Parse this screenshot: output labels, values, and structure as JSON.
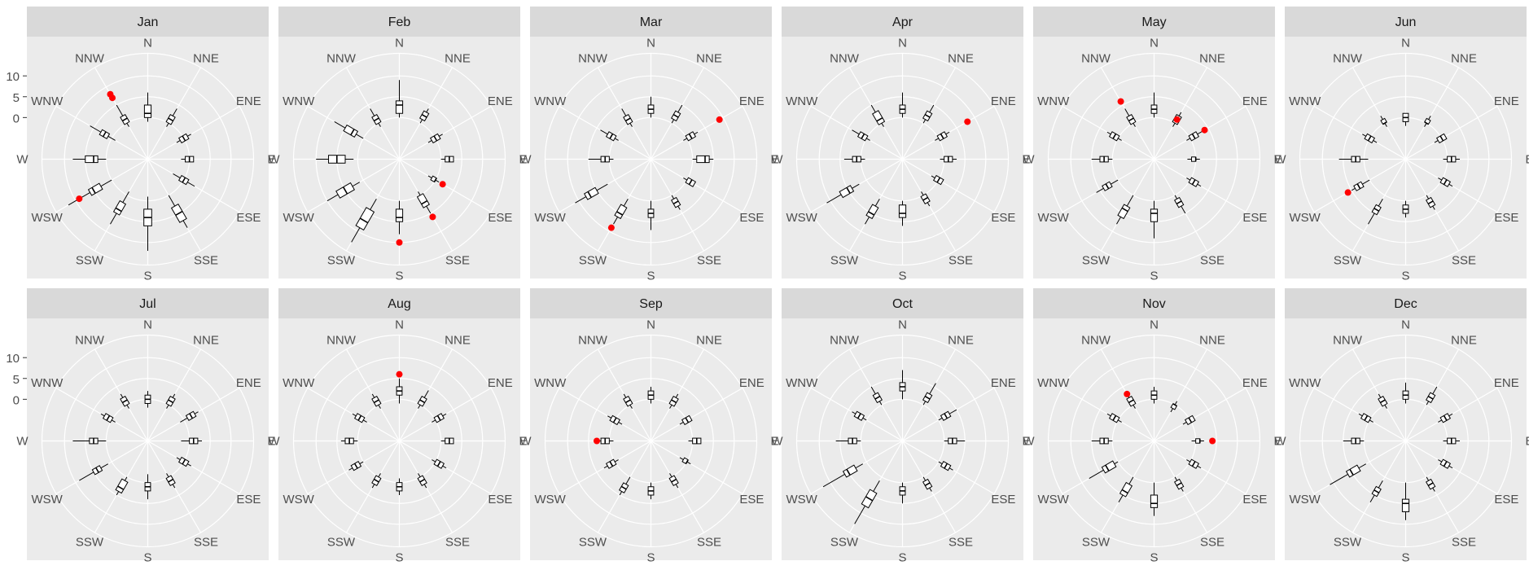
{
  "chart_data": {
    "type": "polar-boxplot-facets",
    "facet_labels": [
      "Jan",
      "Feb",
      "Mar",
      "Apr",
      "May",
      "Jun",
      "Jul",
      "Aug",
      "Sep",
      "Oct",
      "Nov",
      "Dec"
    ],
    "direction_labels": [
      "N",
      "NNE",
      "ENE",
      "E",
      "ESE",
      "SSE",
      "S",
      "SSW",
      "WSW",
      "W",
      "WNW",
      "NNW"
    ],
    "radial_ticks": [
      0,
      5,
      10
    ],
    "radial_tick_labels": [
      "0",
      "5",
      "10"
    ],
    "radial_range": [
      -10,
      16
    ],
    "grid": true,
    "outlier_color": "#ff0000",
    "panel_background": "#ebebeb",
    "strip_background": "#d9d9d9",
    "box_color": "#000000",
    "series": [
      {
        "name": "Jan",
        "boxes": [
          [
            -1,
            0,
            1,
            3,
            6
          ],
          [
            -1,
            0,
            1,
            2,
            4
          ],
          [
            -2,
            -1,
            0,
            1,
            2
          ],
          [
            -2,
            -1,
            0,
            1,
            1
          ],
          [
            -3,
            -1,
            0,
            1,
            3
          ],
          [
            0,
            3,
            5,
            7,
            9
          ],
          [
            -1,
            2,
            4,
            6,
            12
          ],
          [
            -1,
            2,
            4,
            5,
            8
          ],
          [
            0,
            3,
            5,
            6,
            12
          ],
          [
            0,
            2,
            3,
            5,
            8
          ],
          [
            -1,
            1,
            2,
            3,
            6
          ],
          [
            -1,
            0,
            1,
            2,
            5
          ]
        ],
        "outliers": [
          {
            "dir": "NNW",
            "value": 7
          },
          {
            "dir": "NNW",
            "value": 8
          },
          {
            "dir": "WSW",
            "value": 9
          }
        ]
      },
      {
        "name": "Feb",
        "boxes": [
          [
            0,
            1,
            3,
            4,
            9
          ],
          [
            0,
            1,
            2,
            3,
            4
          ],
          [
            -2,
            -1,
            0,
            1,
            2
          ],
          [
            0,
            1,
            2,
            3,
            3
          ],
          [
            -2,
            -1,
            0,
            0,
            1
          ],
          [
            -1,
            0,
            2,
            3,
            5
          ],
          [
            0,
            2,
            4,
            5,
            8
          ],
          [
            1,
            4,
            7,
            9,
            13
          ],
          [
            1,
            3,
            5,
            7,
            10
          ],
          [
            1,
            3,
            5,
            7,
            10
          ],
          [
            0,
            2,
            3,
            5,
            8
          ],
          [
            -1,
            0,
            1,
            2,
            4
          ]
        ],
        "outliers": [
          {
            "dir": "ESE",
            "value": 2
          },
          {
            "dir": "SSE",
            "value": 6
          },
          {
            "dir": "S",
            "value": 10
          }
        ]
      },
      {
        "name": "Mar",
        "boxes": [
          [
            0,
            1,
            2,
            3,
            5
          ],
          [
            0,
            1,
            2,
            3,
            5
          ],
          [
            -1,
            0,
            1,
            2,
            3
          ],
          [
            0,
            1,
            3,
            4,
            5
          ],
          [
            -1,
            0,
            1,
            2,
            2
          ],
          [
            0,
            1,
            2,
            3,
            4
          ],
          [
            0,
            2,
            3,
            4,
            7
          ],
          [
            1,
            3,
            5,
            6,
            8
          ],
          [
            2,
            5,
            7,
            8,
            11
          ],
          [
            -1,
            0,
            1,
            2,
            5
          ],
          [
            -1,
            0,
            1,
            2,
            4
          ],
          [
            -1,
            0,
            1,
            2,
            4
          ]
        ],
        "outliers": [
          {
            "dir": "ENE",
            "value": 9
          },
          {
            "dir": "SSW",
            "value": 9
          }
        ]
      },
      {
        "name": "Apr",
        "boxes": [
          [
            0,
            1,
            2,
            3,
            6
          ],
          [
            0,
            1,
            2,
            3,
            5
          ],
          [
            -1,
            0,
            1,
            2,
            3
          ],
          [
            -1,
            0,
            1,
            2,
            3
          ],
          [
            -2,
            -1,
            0,
            1,
            1
          ],
          [
            -1,
            0,
            1,
            2,
            3
          ],
          [
            0,
            1,
            3,
            4,
            6
          ],
          [
            1,
            3,
            5,
            6,
            8
          ],
          [
            2,
            4,
            5,
            7,
            11
          ],
          [
            -1,
            0,
            1,
            2,
            4
          ],
          [
            -1,
            0,
            1,
            2,
            4
          ],
          [
            -1,
            0,
            1,
            3,
            5
          ]
        ],
        "outliers": [
          {
            "dir": "ENE",
            "value": 8
          }
        ]
      },
      {
        "name": "May",
        "boxes": [
          [
            0,
            1,
            2,
            3,
            6
          ],
          [
            -1,
            0,
            1,
            2,
            3
          ],
          [
            -1,
            0,
            1,
            2,
            4
          ],
          [
            -2,
            -1,
            0,
            0,
            1
          ],
          [
            -1,
            0,
            1,
            2,
            3
          ],
          [
            0,
            1,
            2,
            3,
            5
          ],
          [
            0,
            2,
            3,
            5,
            9
          ],
          [
            0,
            3,
            4,
            6,
            8
          ],
          [
            0,
            2,
            3,
            4,
            6
          ],
          [
            0,
            1,
            2,
            3,
            5
          ],
          [
            -1,
            0,
            1,
            2,
            3
          ],
          [
            -1,
            0,
            1,
            2,
            4
          ]
        ],
        "outliers": [
          {
            "dir": "NNE",
            "value": 1
          },
          {
            "dir": "ENE",
            "value": 4
          },
          {
            "dir": "NNW",
            "value": 6
          }
        ]
      },
      {
        "name": "Jun",
        "boxes": [
          [
            -2,
            -1,
            0,
            1,
            1
          ],
          [
            -1,
            0,
            0,
            1,
            2
          ],
          [
            -2,
            -1,
            0,
            1,
            1
          ],
          [
            -1,
            0,
            1,
            2,
            3
          ],
          [
            -1,
            0,
            1,
            2,
            3
          ],
          [
            0,
            1,
            2,
            3,
            4
          ],
          [
            0,
            1,
            2,
            3,
            4
          ],
          [
            1,
            3,
            4,
            5,
            8
          ],
          [
            0,
            2,
            3,
            4,
            5
          ],
          [
            -1,
            1,
            2,
            3,
            6
          ],
          [
            -2,
            -1,
            0,
            1,
            2
          ],
          [
            -1,
            0,
            0,
            1,
            2
          ]
        ],
        "outliers": [
          {
            "dir": "WSW",
            "value": 6
          }
        ]
      },
      {
        "name": "Jul",
        "boxes": [
          [
            -2,
            -1,
            0,
            1,
            2
          ],
          [
            -1,
            0,
            1,
            2,
            3
          ],
          [
            -1,
            1,
            2,
            3,
            4
          ],
          [
            -2,
            0,
            1,
            2,
            3
          ],
          [
            -2,
            -1,
            0,
            1,
            2
          ],
          [
            -1,
            0,
            1,
            2,
            3
          ],
          [
            -2,
            0,
            1,
            2,
            4
          ],
          [
            0,
            1,
            3,
            4,
            5
          ],
          [
            1,
            3,
            4,
            5,
            9
          ],
          [
            0,
            2,
            3,
            4,
            8
          ],
          [
            -1,
            0,
            1,
            2,
            3
          ],
          [
            -1,
            0,
            1,
            2,
            3
          ]
        ],
        "outliers": []
      },
      {
        "name": "Aug",
        "boxes": [
          [
            -1,
            1,
            2,
            3,
            5
          ],
          [
            -1,
            0,
            1,
            2,
            4
          ],
          [
            -1,
            0,
            1,
            2,
            3
          ],
          [
            0,
            1,
            2,
            3,
            3
          ],
          [
            -1,
            0,
            1,
            2,
            3
          ],
          [
            -1,
            0,
            1,
            2,
            3
          ],
          [
            -1,
            0,
            1,
            2,
            3
          ],
          [
            -1,
            0,
            1,
            2,
            3
          ],
          [
            0,
            1,
            2,
            3,
            4
          ],
          [
            0,
            1,
            2,
            3,
            4
          ],
          [
            -1,
            0,
            1,
            2,
            3
          ],
          [
            -1,
            0,
            1,
            2,
            3
          ]
        ],
        "outliers": [
          {
            "dir": "N",
            "value": 6
          }
        ]
      },
      {
        "name": "Sep",
        "boxes": [
          [
            -1,
            0,
            1,
            2,
            3
          ],
          [
            -1,
            0,
            1,
            2,
            3
          ],
          [
            -2,
            -1,
            0,
            1,
            1
          ],
          [
            -1,
            0,
            1,
            2,
            2
          ],
          [
            -2,
            -1,
            0,
            0,
            1
          ],
          [
            -1,
            0,
            1,
            2,
            3
          ],
          [
            0,
            1,
            2,
            3,
            4
          ],
          [
            0,
            2,
            3,
            4,
            5
          ],
          [
            -1,
            0,
            1,
            2,
            3
          ],
          [
            -1,
            0,
            1,
            2,
            3
          ],
          [
            -2,
            -1,
            0,
            1,
            2
          ],
          [
            -1,
            0,
            1,
            2,
            3
          ]
        ],
        "outliers": [
          {
            "dir": "W",
            "value": 3
          }
        ]
      },
      {
        "name": "Oct",
        "boxes": [
          [
            0,
            2,
            3,
            4,
            7
          ],
          [
            0,
            1,
            2,
            3,
            6
          ],
          [
            0,
            1,
            2,
            3,
            5
          ],
          [
            0,
            1,
            2,
            3,
            5
          ],
          [
            0,
            1,
            2,
            3,
            4
          ],
          [
            0,
            1,
            2,
            3,
            4
          ],
          [
            0,
            1,
            2,
            3,
            5
          ],
          [
            1,
            4,
            6,
            8,
            13
          ],
          [
            1,
            3,
            5,
            6,
            12
          ],
          [
            0,
            1,
            2,
            3,
            6
          ],
          [
            0,
            1,
            2,
            3,
            4
          ],
          [
            0,
            1,
            2,
            3,
            5
          ]
        ],
        "outliers": []
      },
      {
        "name": "Nov",
        "boxes": [
          [
            -1,
            0,
            1,
            2,
            3
          ],
          [
            -2,
            -1,
            0,
            0,
            1
          ],
          [
            -2,
            -1,
            0,
            1,
            1
          ],
          [
            -1,
            0,
            1,
            1,
            2
          ],
          [
            -1,
            0,
            1,
            2,
            3
          ],
          [
            0,
            1,
            2,
            3,
            4
          ],
          [
            0,
            3,
            5,
            6,
            8
          ],
          [
            0,
            2,
            4,
            5,
            7
          ],
          [
            0,
            1,
            3,
            4,
            8
          ],
          [
            0,
            1,
            2,
            3,
            5
          ],
          [
            -1,
            0,
            1,
            2,
            3
          ],
          [
            -1,
            0,
            1,
            2,
            3
          ]
        ],
        "outliers": [
          {
            "dir": "E",
            "value": 4
          },
          {
            "dir": "NNW",
            "value": 3
          }
        ]
      },
      {
        "name": "Dec",
        "boxes": [
          [
            -1,
            0,
            1,
            2,
            4
          ],
          [
            0,
            1,
            2,
            3,
            5
          ],
          [
            -1,
            0,
            1,
            2,
            3
          ],
          [
            -1,
            0,
            1,
            2,
            3
          ],
          [
            -1,
            0,
            1,
            2,
            3
          ],
          [
            0,
            1,
            2,
            3,
            4
          ],
          [
            0,
            4,
            5,
            7,
            9
          ],
          [
            1,
            3,
            4,
            5,
            7
          ],
          [
            1,
            3,
            5,
            6,
            11
          ],
          [
            0,
            1,
            2,
            3,
            5
          ],
          [
            -1,
            0,
            1,
            2,
            3
          ],
          [
            -1,
            0,
            1,
            2,
            3
          ]
        ],
        "outliers": []
      }
    ]
  }
}
